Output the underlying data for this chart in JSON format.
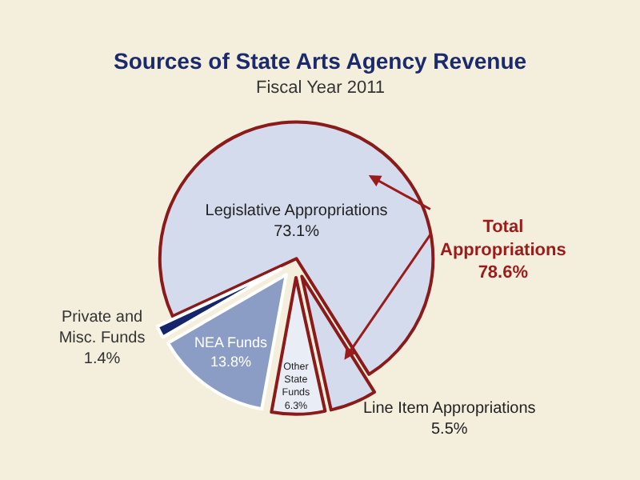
{
  "chart_data": {
    "type": "pie",
    "title": "Sources of State Arts Agency Revenue",
    "subtitle": "Fiscal Year 2011",
    "categories": [
      "Legislative Appropriations",
      "Line Item Appropriations",
      "Other\nState\nFunds",
      "NEA Funds",
      "Private and\nMisc. Funds"
    ],
    "values": [
      73.1,
      5.5,
      6.3,
      13.8,
      1.4
    ],
    "value_labels": [
      "73.1%",
      "5.5%",
      "6.3%",
      "13.8%",
      "1.4%"
    ],
    "colors": [
      "#d3dbed",
      "#d3dbed",
      "#e9edf6",
      "#8c9dc5",
      "#14256b"
    ],
    "annotations": [
      "Total\nAppropriations\n78.6%"
    ],
    "legend": false
  }
}
